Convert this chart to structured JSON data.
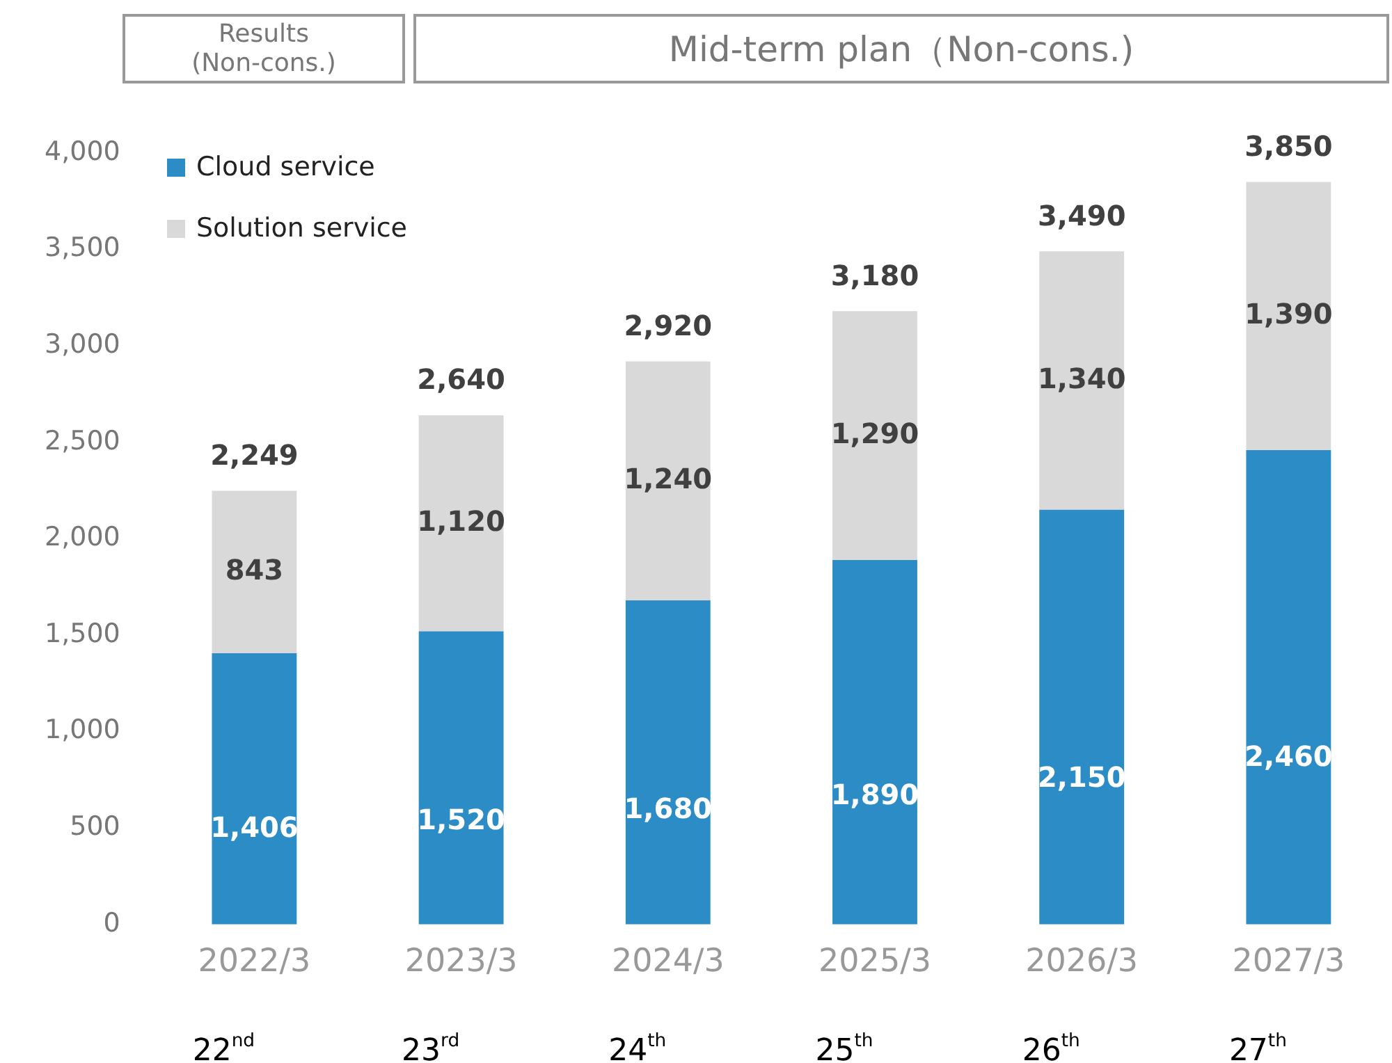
{
  "chart_data": {
    "type": "bar",
    "stacked": true,
    "categories": [
      "2022/3",
      "2023/3",
      "2024/3",
      "2025/3",
      "2026/3",
      "2027/3"
    ],
    "series": [
      {
        "name": "Cloud service",
        "color": "#2b8cc6",
        "values": [
          1406,
          1520,
          1680,
          1890,
          2150,
          2460
        ],
        "value_labels": [
          "1,406",
          "1,520",
          "1,680",
          "1,890",
          "2,150",
          "2,460"
        ]
      },
      {
        "name": "Solution service",
        "color": "#d9d9d9",
        "values": [
          843,
          1120,
          1240,
          1290,
          1340,
          1390
        ],
        "value_labels": [
          "843",
          "1,120",
          "1,240",
          "1,290",
          "1,340",
          "1,390"
        ]
      }
    ],
    "totals": [
      "2,249",
      "2,640",
      "2,920",
      "3,180",
      "3,490",
      "3,850"
    ],
    "ylim": [
      0,
      4000
    ],
    "yticks": [
      0,
      500,
      {
        "value": 1000,
        "label": "1,000"
      },
      {
        "value": 1500,
        "label": "1,500"
      },
      {
        "value": 2000,
        "label": "2,000"
      },
      {
        "value": 2500,
        "label": "2,500"
      },
      {
        "value": 3000,
        "label": "3,000"
      },
      {
        "value": 3500,
        "label": "3,500"
      },
      {
        "value": 4000,
        "label": "4,000"
      }
    ],
    "grid": false,
    "legend": "top left",
    "annotations": [
      "Results\n(Non-cons.)",
      "Mid-term plan（Non-cons.)",
      "22$^{nd}$",
      "23$^{rd}$",
      "24$^{th}$",
      "25$^{th}$",
      "26$^{th}$",
      "27$^{th}$"
    ]
  }
}
